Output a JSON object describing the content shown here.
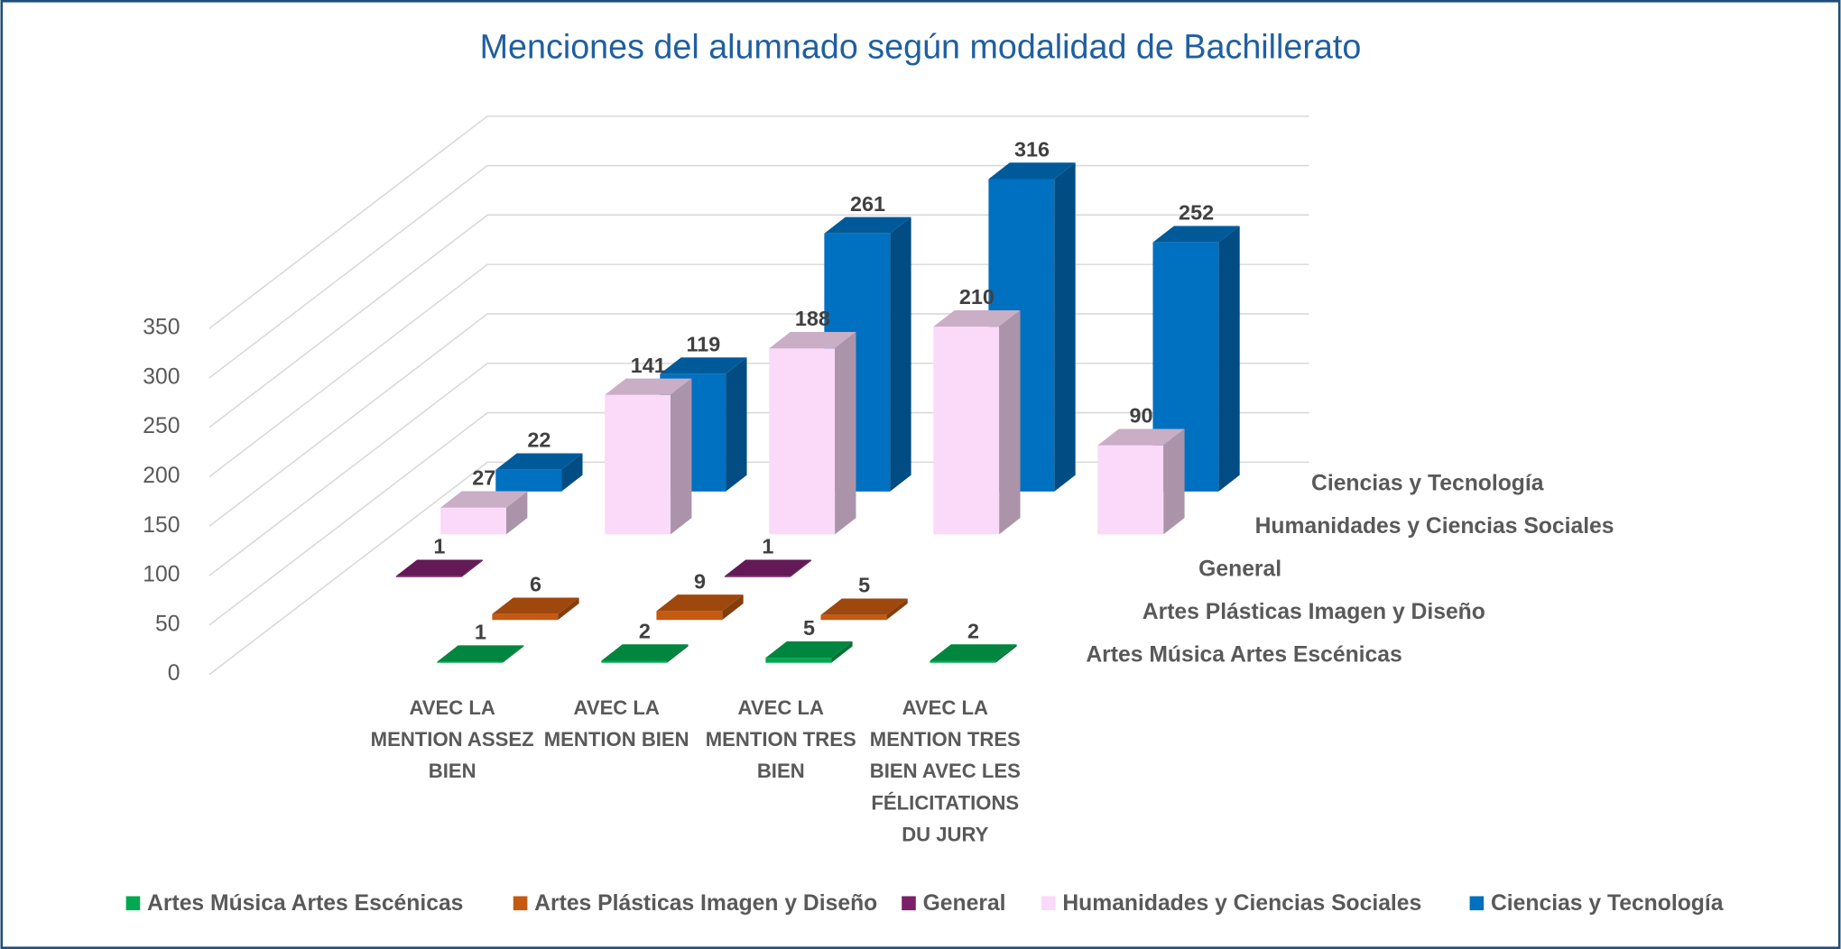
{
  "chart_data": {
    "type": "bar3d",
    "title": "Menciones del alumnado según modalidad de Bachillerato",
    "categories": [
      "AVEC LA MENTION ASSEZ BIEN",
      "AVEC LA MENTION BIEN",
      "AVEC LA MENTION TRES BIEN",
      "AVEC LA MENTION TRES BIEN AVEC LES FÉLICITATIONS DU JURY",
      null
    ],
    "series": [
      {
        "name": "Artes Música Artes Escénicas",
        "color": "#00a84f",
        "values": [
          1,
          2,
          5,
          2,
          null
        ]
      },
      {
        "name": "Artes Plásticas Imagen y Diseño",
        "color": "#c55a11",
        "values": [
          6,
          9,
          5,
          null,
          null
        ]
      },
      {
        "name": "General",
        "color": "#7b1f6a",
        "values": [
          1,
          null,
          1,
          null,
          null
        ]
      },
      {
        "name": "Humanidades y Ciencias Sociales",
        "color": "#fbd9f8",
        "values": [
          27,
          141,
          188,
          210,
          90
        ]
      },
      {
        "name": "Ciencias y Tecnología",
        "color": "#0070c0",
        "values": [
          22,
          119,
          261,
          316,
          252
        ]
      }
    ],
    "ylim": [
      0,
      350
    ],
    "yticks": [
      0,
      50,
      100,
      150,
      200,
      250,
      300,
      350
    ],
    "grid": true,
    "legend": "bottom"
  }
}
